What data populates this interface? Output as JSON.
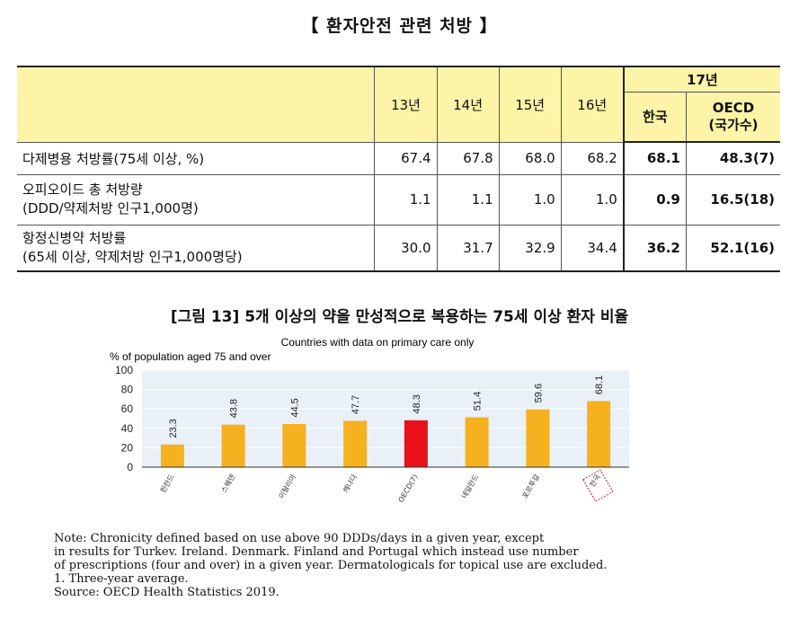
{
  "title": "【 환자안전 관련 처방 】",
  "table": {
    "year_headers": [
      "13년",
      "14년",
      "15년",
      "16년"
    ],
    "group_header": "17년",
    "sub_headers": [
      "한국",
      "OECD\n(국가수)"
    ],
    "rows": [
      {
        "label": [
          "다제병용 처방률(75세 이상, %)"
        ],
        "values": [
          "67.4",
          "67.8",
          "68.0",
          "68.2"
        ],
        "korea": "68.1",
        "oecd": "48.3(7)"
      },
      {
        "label": [
          "오피오이드 총 처방량",
          "(DDD/약제처방 인구1,000명)"
        ],
        "values": [
          "1.1",
          "1.1",
          "1.0",
          "1.0"
        ],
        "korea": "0.9",
        "oecd": "16.5(18)"
      },
      {
        "label": [
          "항정신병약 처방률",
          "(65세 이상, 약제처방 인구1,000명당)"
        ],
        "values": [
          "30.0",
          "31.7",
          "32.9",
          "34.4"
        ],
        "korea": "36.2",
        "oecd": "52.1(16)"
      }
    ]
  },
  "figure_title": "[그림 13] 5개 이상의 약을 만성적으로 복용하는 75세 이상 환자 비율",
  "chart_data": {
    "type": "bar",
    "title": "Countries with data on primary care only",
    "ylabel": "% of population aged 75 and over",
    "ylim": [
      0,
      100
    ],
    "yticks": [
      0,
      20,
      40,
      60,
      80,
      100
    ],
    "grid": true,
    "categories": [
      "핀란드",
      "스웨덴",
      "이탈리아",
      "캐나다",
      "OECD(7)",
      "네덜란드",
      "포르투갈",
      "한국"
    ],
    "values": [
      23.3,
      43.8,
      44.5,
      47.7,
      48.3,
      51.4,
      59.6,
      68.1
    ],
    "value_labels": [
      "23.3",
      "43.8",
      "44.5",
      "47.7",
      "48.3",
      "51.4",
      "59.6",
      "68.1"
    ],
    "colors": {
      "default": "#f5b120",
      "highlight": "#e8101a",
      "korea_box": "#e8101a"
    },
    "highlight_index": 4,
    "boxed_index": 7
  },
  "notes": [
    "Note: Chronicity defined based on use above 90 DDDs/days in a given year, except",
    "in results for Turkev. Ireland. Denmark. Finland and Portugal which instead use number",
    "of prescriptions (four and over) in a given year. Dermatologicals for topical use are excluded.",
    "1. Three-year average.",
    "Source: OECD Health Statistics 2019."
  ]
}
